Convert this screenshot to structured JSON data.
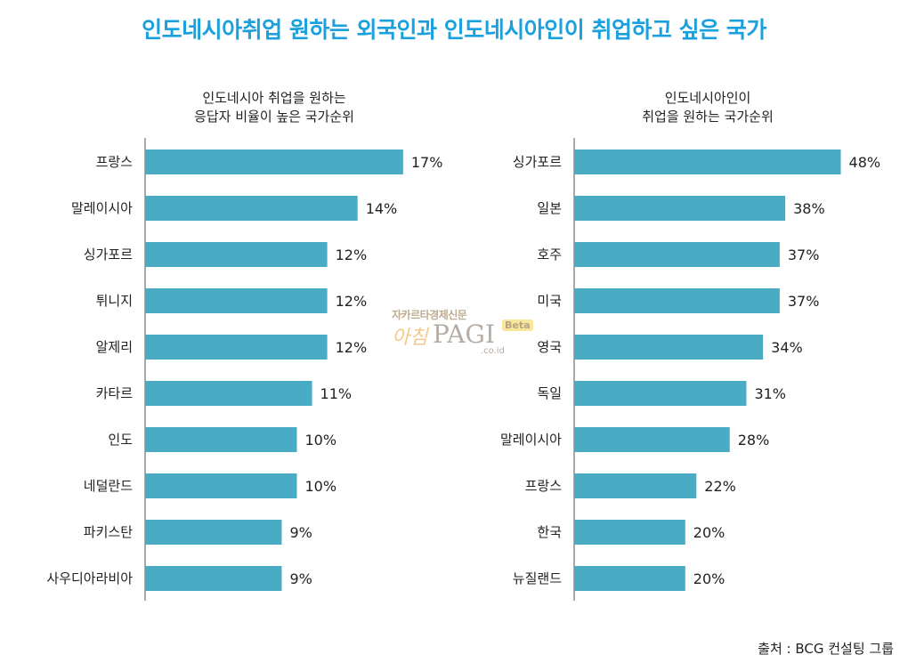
{
  "title": "인도네시아취업 원하는 외국인과 인도네시아인이 취업하고 싶은 국가",
  "watermark": {
    "top": "자카르타경제신문",
    "a": "아침",
    "p": "PAGI",
    "beta": "Beta",
    "co": ".co.id"
  },
  "source": "출처 : BCG 컨설팅 그룹",
  "colors": {
    "bar": "#4aabc4",
    "title": "#1aa0dc",
    "axis": "#555555"
  },
  "chart_data": [
    {
      "type": "bar",
      "orientation": "horizontal",
      "title": "인도네시아 취업을 원하는\n응답자 비율이 높은 국가순위",
      "categories": [
        "프랑스",
        "말레이시아",
        "싱가포르",
        "튀니지",
        "알제리",
        "카타르",
        "인도",
        "네덜란드",
        "파키스탄",
        "사우디아라비아"
      ],
      "values": [
        17,
        14,
        12,
        12,
        12,
        11,
        10,
        10,
        9,
        9
      ],
      "unit": "%"
    },
    {
      "type": "bar",
      "orientation": "horizontal",
      "title": "인도네시아인이\n취업을 원하는 국가순위",
      "categories": [
        "싱가포르",
        "일본",
        "호주",
        "미국",
        "영국",
        "독일",
        "말레이시아",
        "프랑스",
        "한국",
        "뉴질랜드"
      ],
      "values": [
        48,
        38,
        37,
        37,
        34,
        31,
        28,
        22,
        20,
        20
      ],
      "unit": "%"
    }
  ]
}
